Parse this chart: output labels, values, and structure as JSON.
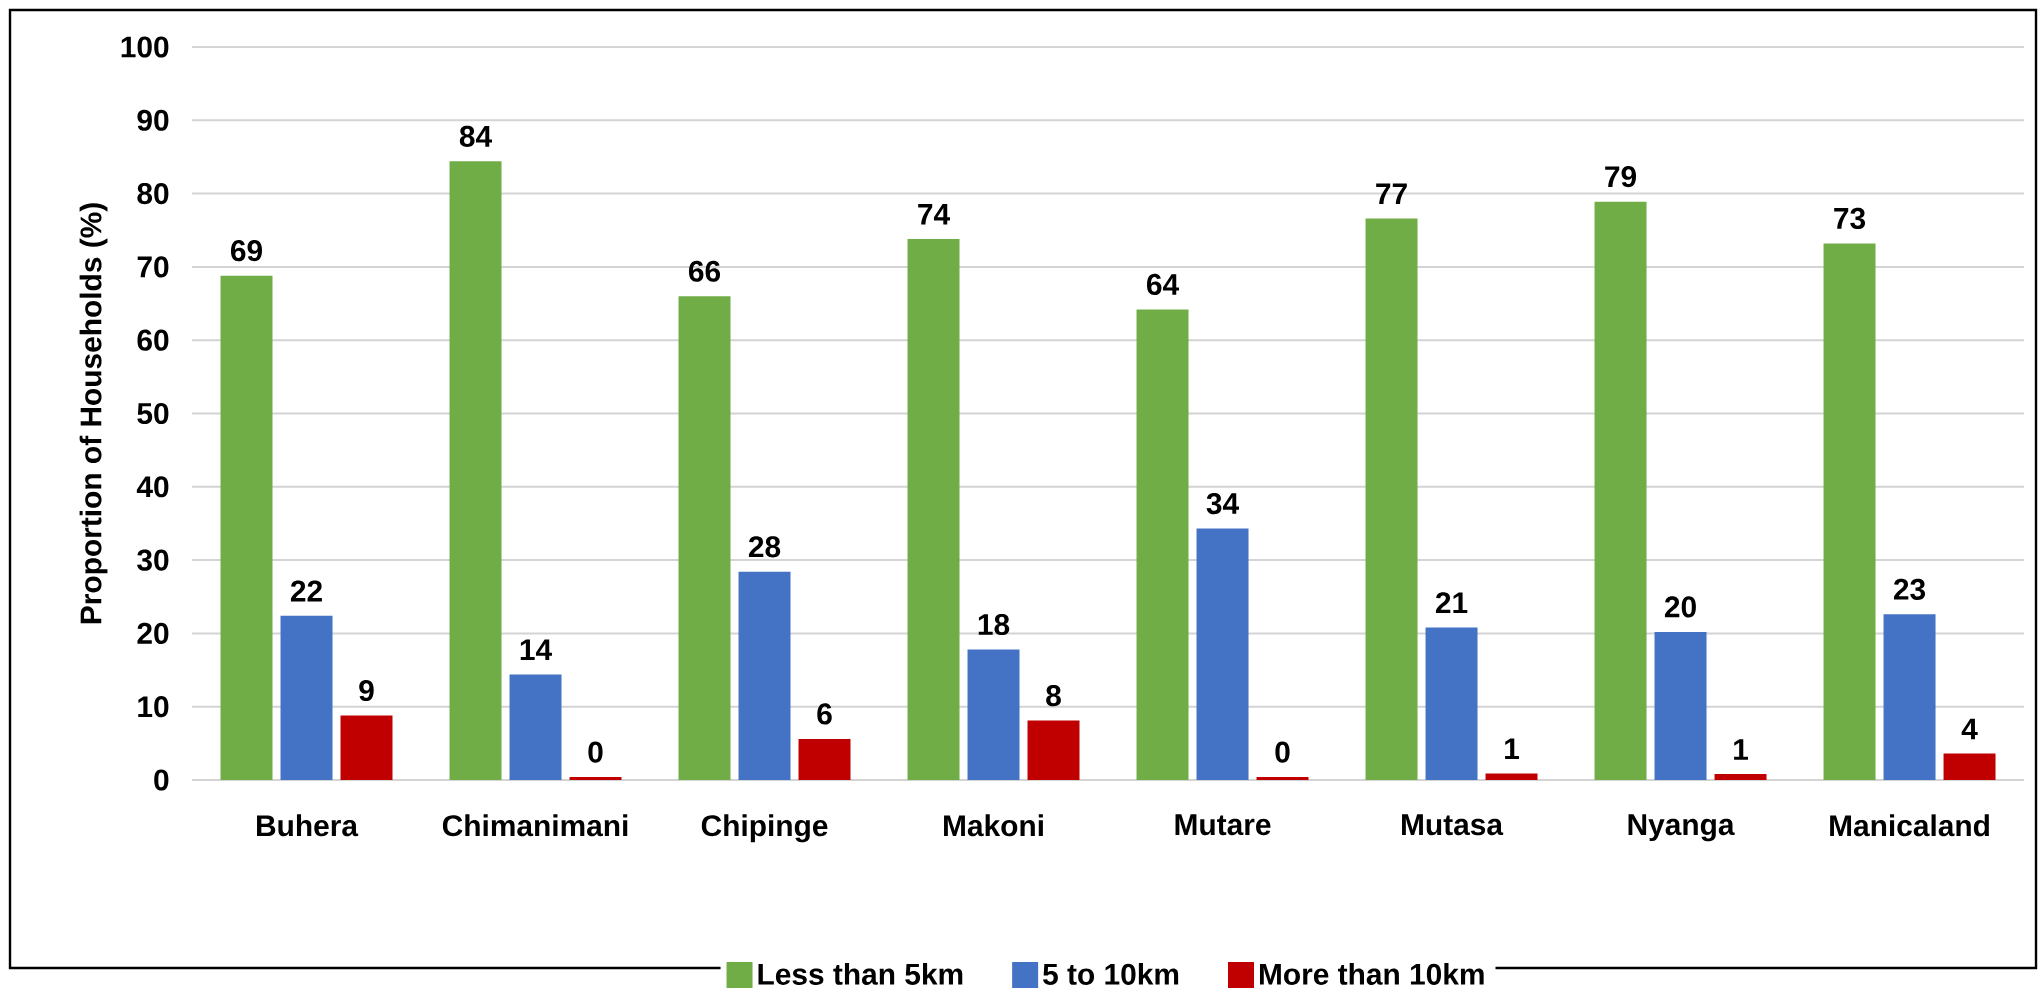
{
  "chart_data": {
    "type": "bar",
    "ylabel": "Proportion of Households (%)",
    "categories": [
      "Buhera",
      "Chimanimani",
      "Chipinge",
      "Makoni",
      "Mutare",
      "Mutasa",
      "Nyanga",
      "Manicaland"
    ],
    "series": [
      {
        "name": "Less than 5km",
        "color": "#70ad47",
        "values": [
          68.8,
          84.4,
          66.0,
          73.8,
          64.2,
          76.6,
          78.9,
          73.2
        ],
        "value_labels": [
          "69",
          "84",
          "66",
          "74",
          "64",
          "77",
          "79",
          "73"
        ]
      },
      {
        "name": "5 to 10km",
        "color": "#4472c4",
        "values": [
          22.4,
          14.4,
          28.4,
          17.8,
          34.3,
          20.8,
          20.2,
          22.6
        ],
        "value_labels": [
          "22",
          "14",
          "28",
          "18",
          "34",
          "21",
          "20",
          "23"
        ]
      },
      {
        "name": "More than 10km",
        "color": "#c00000",
        "values": [
          8.8,
          0.4,
          5.6,
          8.1,
          0.4,
          0.9,
          0.8,
          3.6
        ],
        "value_labels": [
          "9",
          "0",
          "6",
          "8",
          "0",
          "1",
          "1",
          "4"
        ]
      }
    ],
    "ylim": [
      0,
      100
    ],
    "yticks": [
      0,
      10,
      20,
      30,
      40,
      50,
      60,
      70,
      80,
      90,
      100
    ],
    "grid": "y",
    "legend": "bottom"
  }
}
